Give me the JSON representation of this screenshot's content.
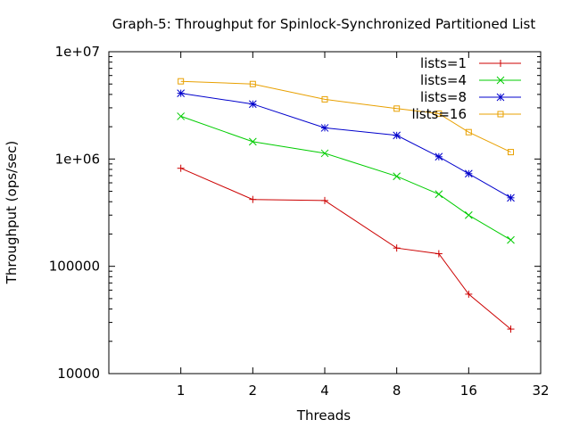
{
  "chart_data": {
    "type": "line",
    "title": "Graph-5: Throughput for Spinlock-Synchronized Partitioned List",
    "xlabel": "Threads",
    "ylabel": "Throughput (ops/sec)",
    "x_scale": "log2",
    "y_scale": "log10",
    "xlim": [
      0.5,
      32
    ],
    "ylim": [
      10000,
      10000000
    ],
    "x_ticks": [
      1,
      2,
      4,
      8,
      16,
      32
    ],
    "x_tick_labels": [
      "1",
      "2",
      "4",
      "8",
      "16",
      "32"
    ],
    "y_ticks": [
      10000,
      100000,
      1000000,
      10000000
    ],
    "y_tick_labels": [
      "10000",
      "100000",
      "1e+06",
      "1e+07"
    ],
    "legend_position": "top-right",
    "grid": false,
    "x": [
      1,
      2,
      4,
      8,
      12,
      16,
      24
    ],
    "series": [
      {
        "name": "lists=1",
        "color": "#cc0000",
        "marker": "plus",
        "values": [
          820000,
          420000,
          410000,
          148000,
          131000,
          55000,
          26000
        ]
      },
      {
        "name": "lists=4",
        "color": "#00cc00",
        "marker": "cross",
        "values": [
          2500000,
          1450000,
          1130000,
          690000,
          470000,
          300000,
          176000
        ]
      },
      {
        "name": "lists=8",
        "color": "#0000cc",
        "marker": "star",
        "values": [
          4100000,
          3250000,
          1950000,
          1660000,
          1050000,
          730000,
          435000
        ]
      },
      {
        "name": "lists=16",
        "color": "#e8a000",
        "marker": "square",
        "values": [
          5300000,
          5000000,
          3600000,
          2950000,
          2650000,
          1780000,
          1160000
        ]
      }
    ]
  }
}
